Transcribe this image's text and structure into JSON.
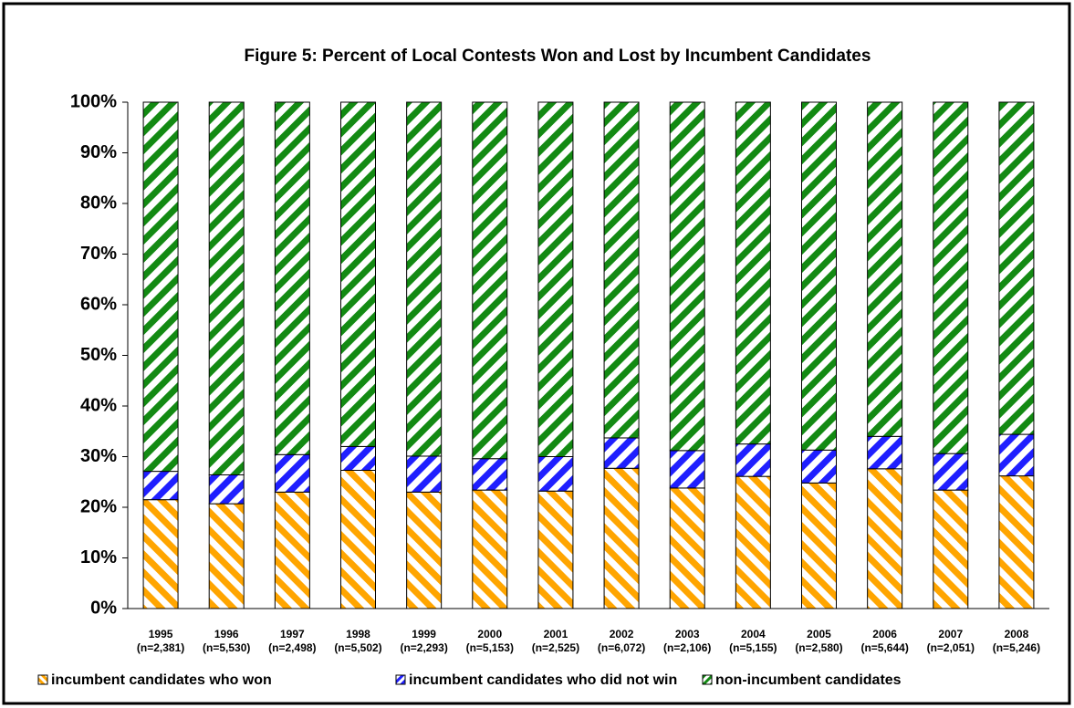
{
  "chart_data": {
    "type": "stacked_bar",
    "title": "Figure 5: Percent of Local Contests Won and Lost by Incumbent Candidates",
    "categories": [
      "1995",
      "1996",
      "1997",
      "1998",
      "1999",
      "2000",
      "2001",
      "2002",
      "2003",
      "2004",
      "2005",
      "2006",
      "2007",
      "2008"
    ],
    "n_labels": [
      "(n=2,381)",
      "(n=5,530)",
      "(n=2,498)",
      "(n=5,502)",
      "(n=2,293)",
      "(n=5,153)",
      "(n=2,525)",
      "(n=6,072)",
      "(n=2,106)",
      "(n=5,155)",
      "(n=2,580)",
      "(n=5,644)",
      "(n=2,051)",
      "(n=5,246)"
    ],
    "series": [
      {
        "name": "incumbent candidates who won",
        "color": "#ffa500",
        "values": [
          21.5,
          20.7,
          23.0,
          27.3,
          23.0,
          23.4,
          23.2,
          27.7,
          23.8,
          26.1,
          24.8,
          27.6,
          23.4,
          26.2
        ]
      },
      {
        "name": "incumbent candidates who did not win",
        "color": "#1f1fff",
        "values": [
          5.6,
          5.7,
          7.4,
          4.7,
          7.1,
          6.2,
          6.8,
          6.0,
          7.4,
          6.4,
          6.5,
          6.4,
          7.2,
          8.2
        ]
      },
      {
        "name": "non-incumbent candidates",
        "color": "#138a13",
        "values": [
          72.9,
          73.6,
          69.6,
          68.0,
          69.9,
          70.4,
          70.0,
          66.3,
          68.8,
          67.5,
          68.7,
          66.0,
          69.4,
          65.6
        ]
      }
    ],
    "ylim": [
      0,
      100
    ],
    "yticks": [
      {
        "value": 0,
        "label": "0%"
      },
      {
        "value": 10,
        "label": "10%"
      },
      {
        "value": 20,
        "label": "20%"
      },
      {
        "value": 30,
        "label": "30%"
      },
      {
        "value": 40,
        "label": "40%"
      },
      {
        "value": 50,
        "label": "50%"
      },
      {
        "value": 60,
        "label": "60%"
      },
      {
        "value": 70,
        "label": "70%"
      },
      {
        "value": 80,
        "label": "80%"
      },
      {
        "value": 90,
        "label": "90%"
      },
      {
        "value": 100,
        "label": "100%"
      }
    ],
    "legend": "bottom"
  }
}
